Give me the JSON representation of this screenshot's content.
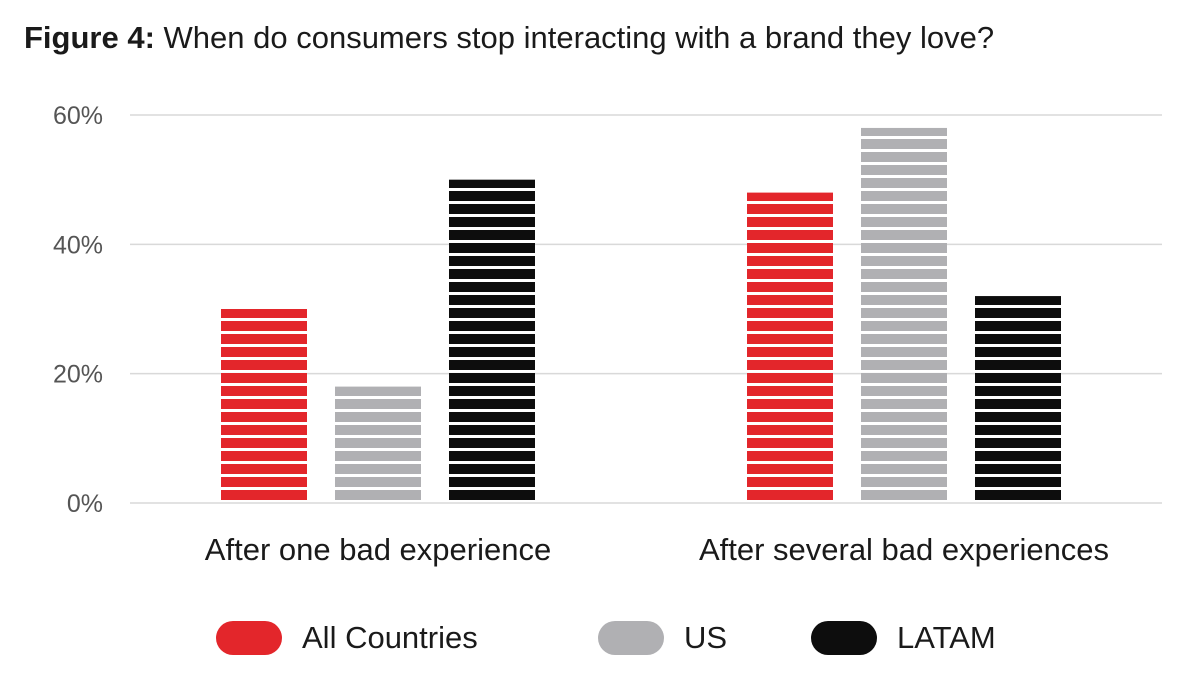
{
  "header": {
    "title_prefix": "Figure 4:",
    "title_text": " When do consumers stop interacting with a brand they love?"
  },
  "chart_data": {
    "type": "bar",
    "title": "Figure 4: When do consumers stop interacting with a brand they love?",
    "categories": [
      "After one bad experience",
      "After several bad experiences"
    ],
    "series": [
      {
        "name": "All Countries",
        "values": [
          30,
          48
        ],
        "color": "#e3262b"
      },
      {
        "name": "US",
        "values": [
          18,
          58
        ],
        "color": "#b0b0b3"
      },
      {
        "name": "LATAM",
        "values": [
          50,
          32
        ],
        "color": "#0d0d0d"
      }
    ],
    "yticks": [
      "0%",
      "20%",
      "40%",
      "60%"
    ],
    "ytick_values": [
      0,
      20,
      40,
      60
    ],
    "ylim": [
      0,
      60
    ],
    "grid": true,
    "legend_position": "bottom",
    "bar_pattern": "horizontal-stripes"
  }
}
